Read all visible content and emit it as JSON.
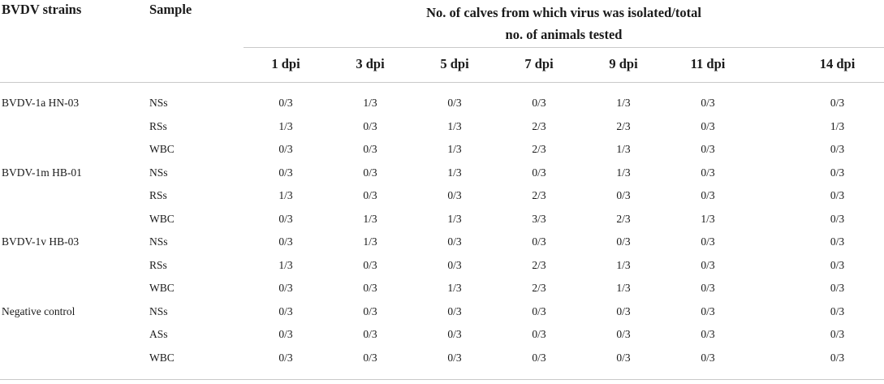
{
  "table": {
    "header": {
      "strain_col": "BVDV strains",
      "sample_col": "Sample",
      "group_line1": "No. of calves from which virus was isolated/total",
      "group_line2": "no. of animals tested",
      "days": [
        "1 dpi",
        "3 dpi",
        "5 dpi",
        "7 dpi",
        "9 dpi",
        "11 dpi",
        "14 dpi"
      ]
    },
    "rows": [
      {
        "strain": "BVDV-1a HN-03",
        "sample": "NSs",
        "values": [
          "0/3",
          "1/3",
          "0/3",
          "0/3",
          "1/3",
          "0/3",
          "0/3"
        ]
      },
      {
        "strain": "",
        "sample": "RSs",
        "values": [
          "1/3",
          "0/3",
          "1/3",
          "2/3",
          "2/3",
          "0/3",
          "1/3"
        ]
      },
      {
        "strain": "",
        "sample": "WBC",
        "values": [
          "0/3",
          "0/3",
          "1/3",
          "2/3",
          "1/3",
          "0/3",
          "0/3"
        ]
      },
      {
        "strain": "BVDV-1m HB-01",
        "sample": "NSs",
        "values": [
          "0/3",
          "0/3",
          "1/3",
          "0/3",
          "1/3",
          "0/3",
          "0/3"
        ]
      },
      {
        "strain": "",
        "sample": "RSs",
        "values": [
          "1/3",
          "0/3",
          "0/3",
          "2/3",
          "0/3",
          "0/3",
          "0/3"
        ]
      },
      {
        "strain": "",
        "sample": "WBC",
        "values": [
          "0/3",
          "1/3",
          "1/3",
          "3/3",
          "2/3",
          "1/3",
          "0/3"
        ]
      },
      {
        "strain": "BVDV-1v HB-03",
        "sample": "NSs",
        "values": [
          "0/3",
          "1/3",
          "0/3",
          "0/3",
          "0/3",
          "0/3",
          "0/3"
        ]
      },
      {
        "strain": "",
        "sample": "RSs",
        "values": [
          "1/3",
          "0/3",
          "0/3",
          "2/3",
          "1/3",
          "0/3",
          "0/3"
        ]
      },
      {
        "strain": "",
        "sample": "WBC",
        "values": [
          "0/3",
          "0/3",
          "1/3",
          "2/3",
          "1/3",
          "0/3",
          "0/3"
        ]
      },
      {
        "strain": "Negative control",
        "sample": "NSs",
        "values": [
          "0/3",
          "0/3",
          "0/3",
          "0/3",
          "0/3",
          "0/3",
          "0/3"
        ]
      },
      {
        "strain": "",
        "sample": "ASs",
        "values": [
          "0/3",
          "0/3",
          "0/3",
          "0/3",
          "0/3",
          "0/3",
          "0/3"
        ]
      },
      {
        "strain": "",
        "sample": "WBC",
        "values": [
          "0/3",
          "0/3",
          "0/3",
          "0/3",
          "0/3",
          "0/3",
          "0/3"
        ]
      }
    ]
  }
}
